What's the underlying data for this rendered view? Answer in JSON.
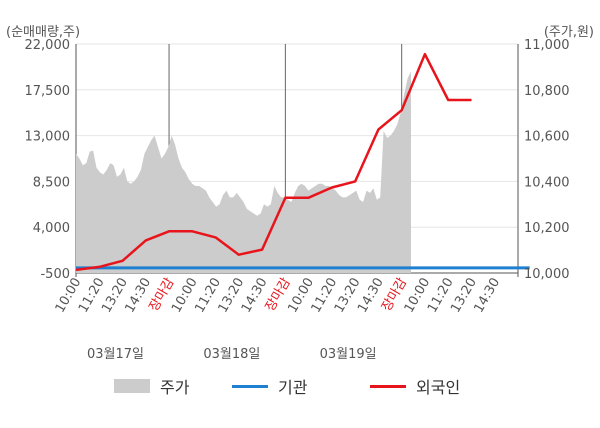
{
  "colors": {
    "price_area": "#cccccc",
    "institution": "#1f7fd0",
    "foreign": "#e8141c",
    "grid": "#e6e6e6",
    "axis": "#555555",
    "market_close_label": "#e8141c"
  },
  "legend": {
    "items": [
      {
        "label": "주가",
        "swatch": "area",
        "color": "#cccccc"
      },
      {
        "label": "기관",
        "swatch": "line",
        "color": "#1f7fd0"
      },
      {
        "label": "외국인",
        "swatch": "line",
        "color": "#e8141c"
      }
    ]
  },
  "chart_data": {
    "type": "line",
    "left_axis_label": "(순매매량,주)",
    "right_axis_label": "(주가,원)",
    "y_left": {
      "ticks": [
        "22,000",
        "17,500",
        "13,000",
        "8,500",
        "4,000",
        "-500"
      ],
      "range": [
        -500,
        22000
      ]
    },
    "y_right": {
      "ticks": [
        "11,000",
        "10,800",
        "10,600",
        "10,400",
        "10,200",
        "10,000"
      ],
      "range": [
        10000,
        11000
      ]
    },
    "x_tick_labels": [
      "10:00",
      "11:20",
      "13:20",
      "14:30",
      "장마감",
      "10:00",
      "11:20",
      "13:20",
      "14:30",
      "장마감",
      "10:00",
      "11:20",
      "13:20",
      "14:30",
      "장마감",
      "10:00",
      "11:20",
      "13:20",
      "14:30"
    ],
    "market_close_label": "장마감",
    "date_labels": [
      "03월17일",
      "03월18일",
      "03월19일"
    ],
    "grid": true,
    "legend_position": "bottom",
    "series": [
      {
        "name": "주가",
        "type": "area",
        "axis": "right",
        "values": [
          10520,
          10500,
          10470,
          10480,
          10530,
          10535,
          10460,
          10440,
          10430,
          10450,
          10480,
          10470,
          10420,
          10430,
          10460,
          10400,
          10390,
          10400,
          10420,
          10450,
          10520,
          10550,
          10580,
          10600,
          10550,
          10500,
          10520,
          10550,
          10600,
          10560,
          10500,
          10460,
          10440,
          10410,
          10390,
          10380,
          10380,
          10370,
          10360,
          10330,
          10310,
          10290,
          10300,
          10340,
          10360,
          10330,
          10330,
          10350,
          10330,
          10310,
          10280,
          10270,
          10260,
          10250,
          10260,
          10300,
          10290,
          10300,
          10380,
          10350,
          10330,
          10330,
          10320,
          10310,
          10350,
          10380,
          10390,
          10380,
          10360,
          10370,
          10380,
          10390,
          10390,
          10380,
          10380,
          10370,
          10360,
          10340,
          10330,
          10330,
          10340,
          10350,
          10360,
          10320,
          10310,
          10360,
          10350,
          10370,
          10320,
          10330,
          10620,
          10590,
          10600,
          10620,
          10650,
          10700,
          10780,
          10850,
          10880
        ]
      },
      {
        "name": "기관",
        "axis": "left",
        "x": [
          1,
          20.5
        ],
        "values": [
          0,
          0
        ]
      },
      {
        "name": "외국인",
        "axis": "left",
        "x": [
          1,
          2,
          3,
          4,
          5,
          6,
          7,
          8,
          9,
          10,
          11,
          12,
          13,
          14,
          15,
          16,
          17,
          18
        ],
        "values": [
          -200,
          100,
          700,
          2700,
          3600,
          3600,
          3000,
          1300,
          1800,
          6900,
          6900,
          7900,
          8500,
          13600,
          15500,
          21000,
          16500,
          16500
        ]
      }
    ]
  }
}
